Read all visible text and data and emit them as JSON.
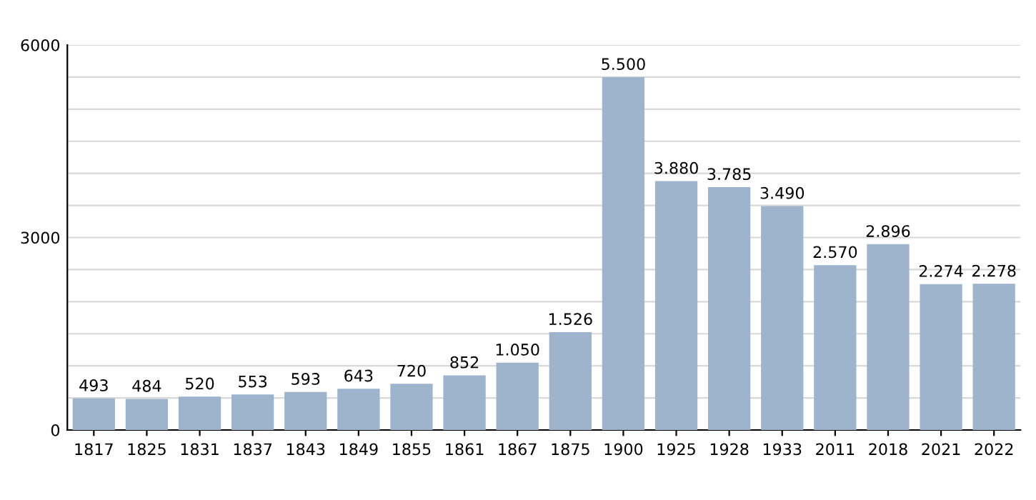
{
  "chart_data": {
    "type": "bar",
    "categories": [
      "1817",
      "1825",
      "1831",
      "1837",
      "1843",
      "1849",
      "1855",
      "1861",
      "1867",
      "1875",
      "1900",
      "1925",
      "1928",
      "1933",
      "2011",
      "2018",
      "2021",
      "2022"
    ],
    "values": [
      493,
      484,
      520,
      553,
      593,
      643,
      720,
      852,
      1050,
      1526,
      5500,
      3880,
      3785,
      3490,
      2570,
      2896,
      2274,
      2278
    ],
    "value_labels": [
      "493",
      "484",
      "520",
      "553",
      "593",
      "643",
      "720",
      "852",
      "1.050",
      "1.526",
      "5.500",
      "3.880",
      "3.785",
      "3.490",
      "2.570",
      "2.896",
      "2.274",
      "2.278"
    ],
    "color": "#9db4cc",
    "ylim": [
      0,
      6000
    ],
    "yticks": [
      0,
      {
        "value": 500,
        "label": null
      },
      {
        "value": 1000,
        "label": null
      },
      {
        "value": 1500,
        "label": null
      },
      {
        "value": 2000,
        "label": null
      },
      {
        "value": 2500,
        "label": null
      },
      3000,
      {
        "value": 3500,
        "label": null
      },
      {
        "value": 4000,
        "label": null
      },
      {
        "value": 4500,
        "label": null
      },
      {
        "value": 5000,
        "label": null
      },
      {
        "value": 5500,
        "label": null
      },
      6000
    ],
    "grid": "y",
    "legend": false
  }
}
